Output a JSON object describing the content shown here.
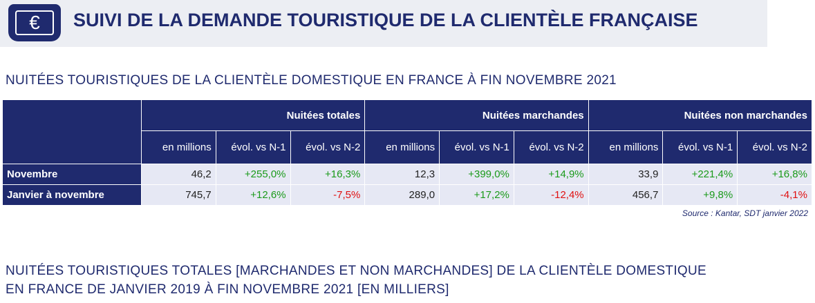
{
  "header": {
    "title": "SUIVI DE LA DEMANDE TOURISTIQUE DE LA CLIENTÈLE FRANÇAISE"
  },
  "table_title": "NUITÉES TOURISTIQUES DE LA CLIENTÈLE DOMESTIQUE EN FRANCE À FIN NOVEMBRE 2021",
  "table": {
    "groups": [
      "Nuitées totales",
      "Nuitées marchandes",
      "Nuitées non marchandes"
    ],
    "subheaders": [
      "en millions",
      "évol. vs N-1",
      "évol. vs N-2",
      "en millions",
      "évol. vs N-1",
      "évol. vs N-2",
      "en millions",
      "évol. vs N-1",
      "évol. vs N-2"
    ],
    "rows": [
      {
        "label": "Novembre",
        "cells": [
          "46,2",
          "+255,0%",
          "+16,3%",
          "12,3",
          "+399,0%",
          "+14,9%",
          "33,9",
          "+221,4%",
          "+16,8%"
        ]
      },
      {
        "label": "Janvier à novembre",
        "cells": [
          "745,7",
          "+12,6%",
          "-7,5%",
          "289,0",
          "+17,2%",
          "-12,4%",
          "456,7",
          "+9,8%",
          "-4,1%"
        ]
      }
    ]
  },
  "source": "Source :  Kantar, SDT janvier 2022",
  "chart_title": [
    "NUITÉES TOURISTIQUES TOTALES [MARCHANDES ET NON MARCHANDES] DE LA CLIENTÈLE DOMESTIQUE",
    "EN FRANCE DE JANVIER 2019 À FIN NOVEMBRE 2021 [EN MILLIERS]"
  ]
}
